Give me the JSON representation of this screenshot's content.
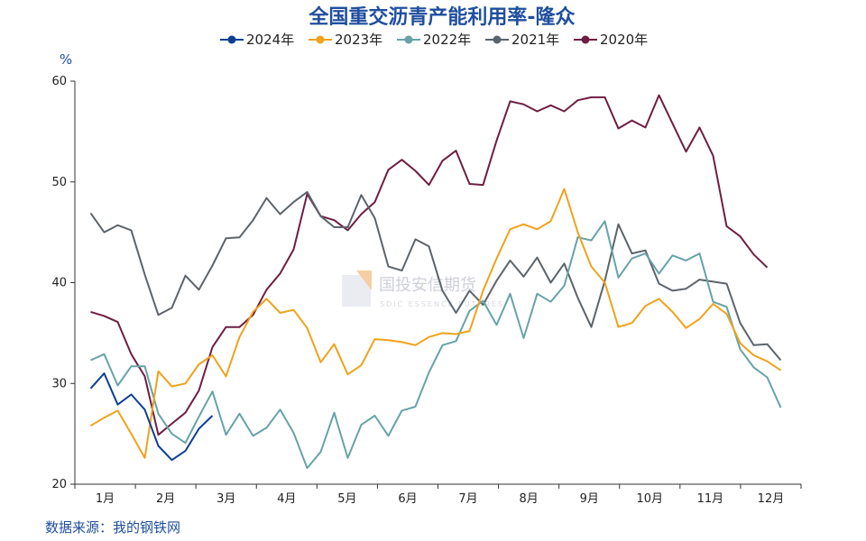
{
  "chart_data": {
    "type": "line",
    "title": "全国重交沥青产能利用率-隆众",
    "ylabel": "%",
    "ylim": [
      20,
      60
    ],
    "yticks": [
      "20",
      "30",
      "40",
      "50",
      "60"
    ],
    "xmonths": [
      "1月",
      "2月",
      "3月",
      "4月",
      "5月",
      "6月",
      "7月",
      "8月",
      "9月",
      "10月",
      "11月",
      "12月"
    ],
    "weeks_total": 53,
    "grid": false,
    "legend_position": "top-center",
    "series": [
      {
        "name": "2024年",
        "color": "#0d3f94",
        "values": [
          29.5,
          31.0,
          27.9,
          28.9,
          27.4,
          23.8,
          22.4,
          23.3,
          25.5,
          26.8
        ]
      },
      {
        "name": "2023年",
        "color": "#f0a21a",
        "values": [
          25.8,
          26.6,
          27.3,
          25.0,
          22.6,
          31.2,
          29.7,
          30.0,
          31.9,
          32.8,
          30.7,
          34.6,
          37.1,
          38.4,
          37.0,
          37.3,
          35.5,
          32.1,
          33.9,
          30.9,
          31.8,
          34.4,
          34.3,
          34.1,
          33.8,
          34.6,
          35.0,
          34.9,
          35.2,
          39.2,
          42.4,
          45.3,
          45.8,
          45.3,
          46.1,
          49.3,
          45.0,
          41.6,
          40.0,
          35.6,
          36.0,
          37.7,
          38.4,
          37.1,
          35.5,
          36.4,
          37.9,
          36.9,
          34.0,
          32.8,
          32.2,
          31.3
        ]
      },
      {
        "name": "2022年",
        "color": "#66a3a8",
        "values": [
          32.3,
          32.9,
          29.8,
          31.7,
          31.7,
          27.0,
          25.0,
          24.1,
          26.7,
          29.2,
          24.9,
          27.0,
          24.8,
          25.6,
          27.4,
          25.1,
          21.6,
          23.2,
          27.1,
          22.6,
          25.9,
          26.8,
          24.8,
          27.3,
          27.7,
          31.1,
          33.8,
          34.2,
          37.2,
          38.2,
          35.8,
          38.9,
          34.5,
          38.9,
          38.1,
          39.7,
          44.5,
          44.2,
          46.1,
          40.5,
          42.4,
          42.9,
          40.9,
          42.7,
          42.2,
          42.9,
          38.1,
          37.6,
          33.4,
          31.6,
          30.6,
          27.6
        ]
      },
      {
        "name": "2021年",
        "color": "#5c646b",
        "values": [
          46.9,
          45.0,
          45.7,
          45.2,
          40.8,
          36.8,
          37.5,
          40.7,
          39.3,
          41.7,
          44.4,
          44.5,
          46.2,
          48.4,
          46.8,
          48.0,
          49.0,
          46.6,
          45.5,
          45.5,
          48.7,
          46.4,
          41.6,
          41.2,
          44.3,
          43.6,
          39.2,
          37.0,
          39.2,
          37.8,
          40.2,
          42.2,
          40.6,
          42.5,
          40.0,
          41.9,
          38.5,
          35.6,
          40.2,
          45.8,
          42.9,
          43.2,
          39.9,
          39.2,
          39.4,
          40.3,
          40.1,
          39.9,
          36.0,
          33.8,
          33.9,
          32.3
        ]
      },
      {
        "name": "2020年",
        "color": "#6e1e42",
        "values": [
          37.1,
          36.7,
          36.1,
          32.9,
          30.7,
          24.9,
          26.0,
          27.1,
          29.3,
          33.6,
          35.6,
          35.6,
          36.8,
          39.3,
          40.9,
          43.3,
          48.8,
          46.6,
          46.2,
          45.2,
          46.8,
          48.0,
          51.2,
          52.2,
          51.1,
          49.7,
          52.1,
          53.1,
          49.8,
          49.7,
          54.1,
          58.0,
          57.7,
          57.0,
          57.6,
          57.0,
          58.1,
          58.4,
          58.4,
          55.3,
          56.1,
          55.4,
          58.6,
          55.8,
          53.0,
          55.4,
          52.6,
          45.6,
          44.6,
          42.8,
          41.5
        ]
      }
    ]
  },
  "watermark": {
    "text": "国投安信期货",
    "sub": "SDIC ESSENCE FUTURES"
  },
  "source": "数据来源：我的钢铁网"
}
